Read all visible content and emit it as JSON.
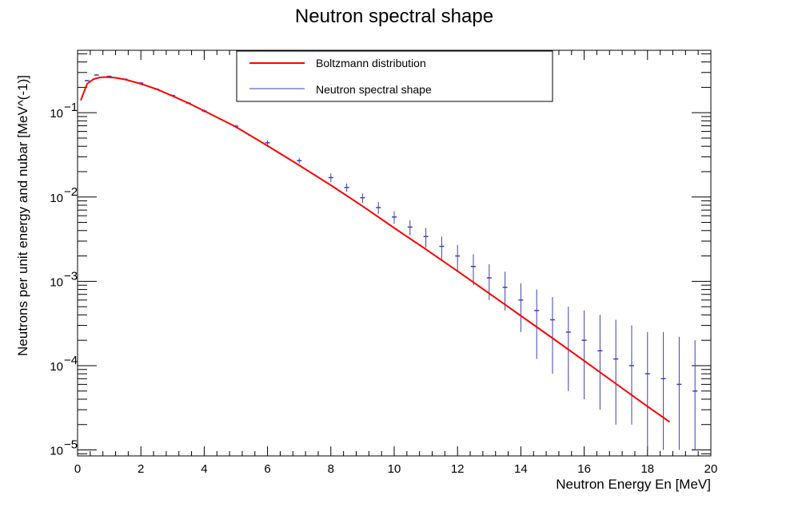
{
  "chart_data": {
    "type": "scatter",
    "title": "Neutron spectral shape",
    "xlabel": "Neutron Energy En [MeV]",
    "ylabel": "Neutrons per unit energy and nubar [MeV^(-1)]",
    "xlim": [
      0,
      20
    ],
    "ylim": [
      8.5e-06,
      0.55
    ],
    "y_scale": "log",
    "grid": false,
    "legend_position": "top",
    "x_ticks": [
      0,
      2,
      4,
      6,
      8,
      10,
      12,
      14,
      16,
      18,
      20
    ],
    "x_tick_labels": [
      "0",
      "2",
      "4",
      "6",
      "8",
      "10",
      "12",
      "14",
      "16",
      "18",
      "20"
    ],
    "y_ticks": [
      1e-05,
      0.0001,
      0.001,
      0.01,
      0.1
    ],
    "y_tick_labels": [
      {
        "base": "10",
        "exp": "−5"
      },
      {
        "base": "10",
        "exp": "−4"
      },
      {
        "base": "10",
        "exp": "−3"
      },
      {
        "base": "10",
        "exp": "−2"
      },
      {
        "base": "10",
        "exp": "−1"
      }
    ],
    "series": [
      {
        "name": "Boltzmann distribution",
        "color": "#ff0000",
        "style": "line",
        "x": [
          0.1,
          0.3,
          0.5,
          0.7,
          0.9,
          1.2,
          1.5,
          2,
          2.5,
          3,
          3.5,
          4,
          5,
          6,
          7,
          8,
          9,
          10,
          11,
          12,
          13,
          14,
          15,
          16,
          17,
          18,
          18.7
        ],
        "y": [
          0.14,
          0.22,
          0.25,
          0.262,
          0.265,
          0.26,
          0.248,
          0.22,
          0.19,
          0.158,
          0.13,
          0.105,
          0.068,
          0.0405,
          0.0238,
          0.0138,
          0.0078,
          0.0043,
          0.0024,
          0.00132,
          0.00072,
          0.00039,
          0.000212,
          0.000114,
          6.12e-05,
          3.28e-05,
          2.15e-05
        ]
      },
      {
        "name": "Neutron spectral shape",
        "color": "#3f3fb8",
        "style": "markers-with-error-bars",
        "x": [
          0.3,
          0.6,
          1,
          1.5,
          2,
          2.5,
          3,
          3.5,
          4,
          5,
          6,
          7,
          8,
          8.5,
          9,
          9.5,
          10,
          10.5,
          11,
          11.5,
          12,
          12.5,
          13,
          13.5,
          14,
          14.5,
          15,
          15.5,
          16,
          16.5,
          17,
          17.5,
          18,
          18.5,
          19,
          19.5
        ],
        "y": [
          0.24,
          0.28,
          0.27,
          0.25,
          0.225,
          0.19,
          0.16,
          0.13,
          0.105,
          0.069,
          0.044,
          0.027,
          0.017,
          0.013,
          0.0098,
          0.0075,
          0.0058,
          0.0044,
          0.0034,
          0.0026,
          0.002,
          0.0015,
          0.0011,
          0.00085,
          0.0006,
          0.00045,
          0.00035,
          0.00025,
          0.0002,
          0.00015,
          0.00012,
          0.0001,
          8e-05,
          7e-05,
          6e-05,
          5e-05
        ],
        "y_low": [
          0.235,
          0.275,
          0.265,
          0.246,
          0.221,
          0.186,
          0.156,
          0.126,
          0.101,
          0.066,
          0.041,
          0.025,
          0.015,
          0.0115,
          0.0085,
          0.0063,
          0.0048,
          0.0035,
          0.0025,
          0.0018,
          0.0013,
          0.0009,
          0.0006,
          0.00045,
          0.00025,
          0.00012,
          8e-05,
          5e-05,
          4e-05,
          3e-05,
          2e-05,
          2e-05,
          1e-05,
          1e-05,
          1e-05,
          1e-05
        ],
        "y_high": [
          0.245,
          0.285,
          0.275,
          0.254,
          0.229,
          0.194,
          0.164,
          0.134,
          0.109,
          0.072,
          0.047,
          0.029,
          0.019,
          0.0145,
          0.011,
          0.0087,
          0.0068,
          0.0053,
          0.0043,
          0.0034,
          0.0027,
          0.0021,
          0.0016,
          0.0013,
          0.00095,
          0.0008,
          0.00065,
          0.0005,
          0.00045,
          0.0004,
          0.00035,
          0.0003,
          0.00025,
          0.00025,
          0.00022,
          0.0002
        ]
      }
    ]
  }
}
